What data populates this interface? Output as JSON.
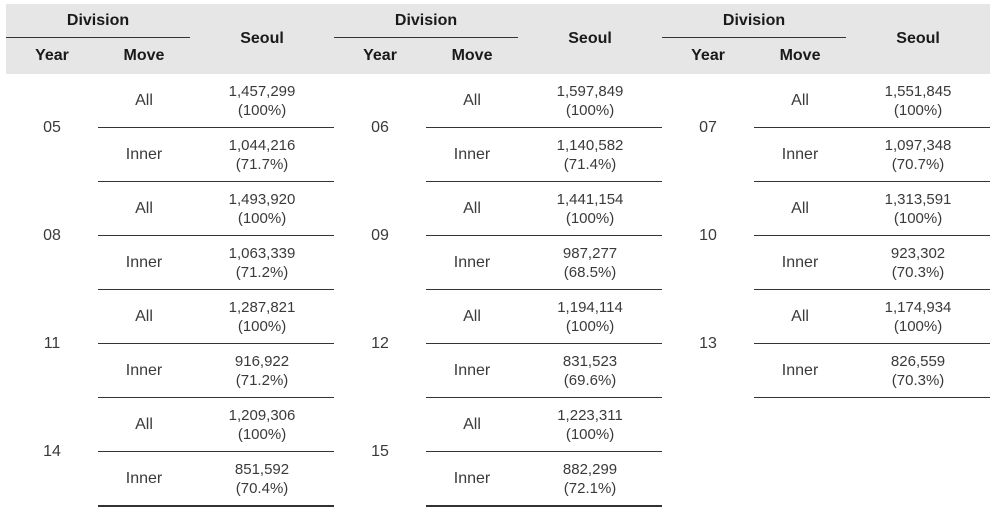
{
  "header": {
    "division": "Division",
    "year": "Year",
    "move": "Move",
    "seoul": "Seoul"
  },
  "rows": [
    [
      {
        "year": "05",
        "all_value": "1,457,299",
        "all_pct": "(100%)",
        "inner_value": "1,044,216",
        "inner_pct": "(71.7%)"
      },
      {
        "year": "06",
        "all_value": "1,597,849",
        "all_pct": "(100%)",
        "inner_value": "1,140,582",
        "inner_pct": "(71.4%)"
      },
      {
        "year": "07",
        "all_value": "1,551,845",
        "all_pct": "(100%)",
        "inner_value": "1,097,348",
        "inner_pct": "(70.7%)"
      }
    ],
    [
      {
        "year": "08",
        "all_value": "1,493,920",
        "all_pct": "(100%)",
        "inner_value": "1,063,339",
        "inner_pct": "(71.2%)"
      },
      {
        "year": "09",
        "all_value": "1,441,154",
        "all_pct": "(100%)",
        "inner_value": "987,277",
        "inner_pct": "(68.5%)"
      },
      {
        "year": "10",
        "all_value": "1,313,591",
        "all_pct": "(100%)",
        "inner_value": "923,302",
        "inner_pct": "(70.3%)"
      }
    ],
    [
      {
        "year": "11",
        "all_value": "1,287,821",
        "all_pct": "(100%)",
        "inner_value": "916,922",
        "inner_pct": "(71.2%)"
      },
      {
        "year": "12",
        "all_value": "1,194,114",
        "all_pct": "(100%)",
        "inner_value": "831,523",
        "inner_pct": "(69.6%)"
      },
      {
        "year": "13",
        "all_value": "1,174,934",
        "all_pct": "(100%)",
        "inner_value": "826,559",
        "inner_pct": "(70.3%)"
      }
    ],
    [
      {
        "year": "14",
        "all_value": "1,209,306",
        "all_pct": "(100%)",
        "inner_value": "851,592",
        "inner_pct": "(70.4%)"
      },
      {
        "year": "15",
        "all_value": "1,223,311",
        "all_pct": "(100%)",
        "inner_value": "882,299",
        "inner_pct": "(72.1%)"
      }
    ]
  ],
  "move_labels": {
    "all": "All",
    "inner": "Inner"
  }
}
